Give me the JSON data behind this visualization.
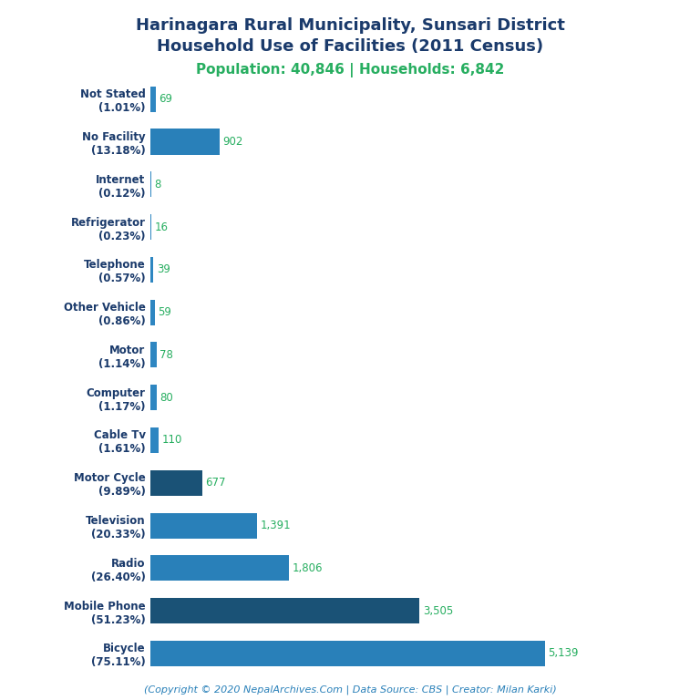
{
  "title_line1": "Harinagara Rural Municipality, Sunsari District",
  "title_line2": "Household Use of Facilities (2011 Census)",
  "subtitle": "Population: 40,846 | Households: 6,842",
  "categories": [
    "Not Stated\n(1.01%)",
    "No Facility\n(13.18%)",
    "Internet\n(0.12%)",
    "Refrigerator\n(0.23%)",
    "Telephone\n(0.57%)",
    "Other Vehicle\n(0.86%)",
    "Motor\n(1.14%)",
    "Computer\n(1.17%)",
    "Cable Tv\n(1.61%)",
    "Motor Cycle\n(9.89%)",
    "Television\n(20.33%)",
    "Radio\n(26.40%)",
    "Mobile Phone\n(51.23%)",
    "Bicycle\n(75.11%)"
  ],
  "values": [
    69,
    902,
    8,
    16,
    39,
    59,
    78,
    80,
    110,
    677,
    1391,
    1806,
    3505,
    5139
  ],
  "bar_colors": [
    "#2e86c1",
    "#2980b9",
    "#2e86c1",
    "#2e86c1",
    "#2e86c1",
    "#2e86c1",
    "#2e86c1",
    "#2e86c1",
    "#2e86c1",
    "#1a5276",
    "#2980b9",
    "#2980b9",
    "#1a5276",
    "#2980b9"
  ],
  "value_color": "#27ae60",
  "title_color": "#1a3a6b",
  "subtitle_color": "#27ae60",
  "label_color": "#1a3a6b",
  "footer_text": "(Copyright © 2020 NepalArchives.Com | Data Source: CBS | Creator: Milan Karki)",
  "footer_color": "#2980b9",
  "background_color": "#ffffff",
  "title_fontsize": 13,
  "subtitle_fontsize": 11,
  "label_fontsize": 8.5,
  "value_fontsize": 8.5,
  "footer_fontsize": 8
}
